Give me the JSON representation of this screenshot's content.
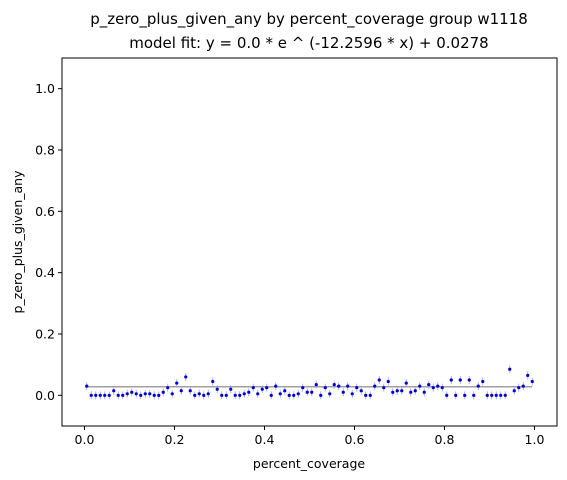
{
  "chart_data": {
    "type": "scatter",
    "title": "p_zero_plus_given_any by percent_coverage group w1118",
    "subtitle": "model fit: y = 0.0 * e ^ (-12.2596 * x) + 0.0278",
    "xlabel": "percent_coverage",
    "ylabel": "p_zero_plus_given_any",
    "xlim": [
      -0.05,
      1.05
    ],
    "ylim": [
      -0.1,
      1.1
    ],
    "xticks": [
      0.0,
      0.2,
      0.4,
      0.6,
      0.8,
      1.0
    ],
    "xtick_labels": [
      "0.0",
      "0.2",
      "0.4",
      "0.6",
      "0.8",
      "1.0"
    ],
    "yticks": [
      0.0,
      0.2,
      0.4,
      0.6,
      0.8,
      1.0
    ],
    "ytick_labels": [
      "0.0",
      "0.2",
      "0.4",
      "0.6",
      "0.8",
      "1.0"
    ],
    "grid": false,
    "fit_line": {
      "a": 0.0,
      "b": -12.2596,
      "c": 0.0278,
      "color": "#a0a0a0"
    },
    "point_color": "#0000cc",
    "errorbar_color": "#9aa0f0",
    "series": [
      {
        "x": [
          0.005,
          0.015,
          0.025,
          0.035,
          0.045,
          0.055,
          0.065,
          0.075,
          0.085,
          0.095,
          0.105,
          0.115,
          0.125,
          0.135,
          0.145,
          0.155,
          0.165,
          0.175,
          0.185,
          0.195,
          0.205,
          0.215,
          0.225,
          0.235,
          0.245,
          0.255,
          0.265,
          0.275,
          0.285,
          0.295,
          0.305,
          0.315,
          0.325,
          0.335,
          0.345,
          0.355,
          0.365,
          0.375,
          0.385,
          0.395,
          0.405,
          0.415,
          0.425,
          0.435,
          0.445,
          0.455,
          0.465,
          0.475,
          0.485,
          0.495,
          0.505,
          0.515,
          0.525,
          0.535,
          0.545,
          0.555,
          0.565,
          0.575,
          0.585,
          0.595,
          0.605,
          0.615,
          0.625,
          0.635,
          0.645,
          0.655,
          0.665,
          0.675,
          0.685,
          0.695,
          0.705,
          0.715,
          0.725,
          0.735,
          0.745,
          0.755,
          0.765,
          0.775,
          0.785,
          0.795,
          0.805,
          0.815,
          0.825,
          0.835,
          0.845,
          0.855,
          0.865,
          0.875,
          0.885,
          0.895,
          0.905,
          0.915,
          0.925,
          0.935,
          0.945,
          0.955,
          0.965,
          0.975,
          0.985,
          0.995
        ],
        "y": [
          0.03,
          0.0,
          0.0,
          0.0,
          0.0,
          0.0,
          0.015,
          0.0,
          0.0,
          0.005,
          0.01,
          0.005,
          0.0,
          0.005,
          0.005,
          0.0,
          0.0,
          0.01,
          0.025,
          0.005,
          0.04,
          0.015,
          0.06,
          0.015,
          0.0,
          0.005,
          0.0,
          0.005,
          0.045,
          0.02,
          0.0,
          0.0,
          0.02,
          0.0,
          0.0,
          0.005,
          0.01,
          0.025,
          0.005,
          0.02,
          0.025,
          0.0,
          0.03,
          0.005,
          0.015,
          0.0,
          0.0,
          0.005,
          0.025,
          0.01,
          0.01,
          0.035,
          0.0,
          0.025,
          0.005,
          0.035,
          0.03,
          0.01,
          0.03,
          0.005,
          0.025,
          0.015,
          0.0,
          0.0,
          0.03,
          0.05,
          0.025,
          0.045,
          0.01,
          0.015,
          0.015,
          0.04,
          0.01,
          0.015,
          0.03,
          0.01,
          0.035,
          0.025,
          0.03,
          0.025,
          0.0,
          0.05,
          0.0,
          0.05,
          0.0,
          0.05,
          0.0,
          0.03,
          0.045,
          0.0,
          0.0,
          0.0,
          0.0,
          0.0,
          0.085,
          0.015,
          0.025,
          0.03,
          0.065,
          0.045
        ]
      }
    ]
  }
}
